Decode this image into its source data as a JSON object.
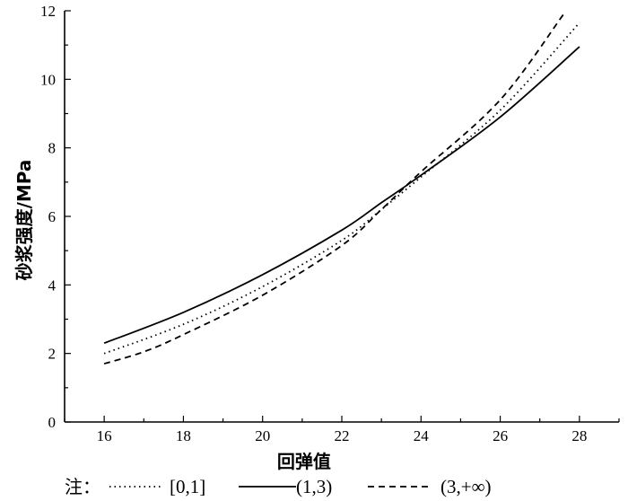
{
  "chart_data": {
    "type": "line",
    "title": "",
    "xlabel": "回弹值",
    "ylabel": "砂浆强度/MPa",
    "xlim": [
      15,
      29
    ],
    "ylim": [
      0,
      12
    ],
    "xticks": [
      16,
      18,
      20,
      22,
      24,
      26,
      28
    ],
    "yticks": [
      0,
      2,
      4,
      6,
      8,
      10,
      12
    ],
    "grid": false,
    "legend_note": "注：",
    "legend_placement": "bottom",
    "series": [
      {
        "name": "[0,1]",
        "style": "dotted",
        "x": [
          16,
          18,
          20,
          22,
          23,
          24,
          26,
          28
        ],
        "y": [
          2.0,
          2.85,
          3.95,
          5.3,
          6.2,
          7.15,
          9.1,
          11.65
        ]
      },
      {
        "name": "(1,3)",
        "style": "solid",
        "x": [
          16,
          18,
          20,
          22,
          23,
          24,
          26,
          28
        ],
        "y": [
          2.3,
          3.2,
          4.3,
          5.6,
          6.4,
          7.2,
          8.9,
          10.95
        ]
      },
      {
        "name": "(3,+∞)",
        "style": "dashed",
        "x": [
          16,
          17,
          18,
          20,
          22,
          23,
          24,
          26,
          27.6
        ],
        "y": [
          1.7,
          2.05,
          2.55,
          3.7,
          5.15,
          6.2,
          7.3,
          9.4,
          11.9
        ]
      }
    ]
  }
}
